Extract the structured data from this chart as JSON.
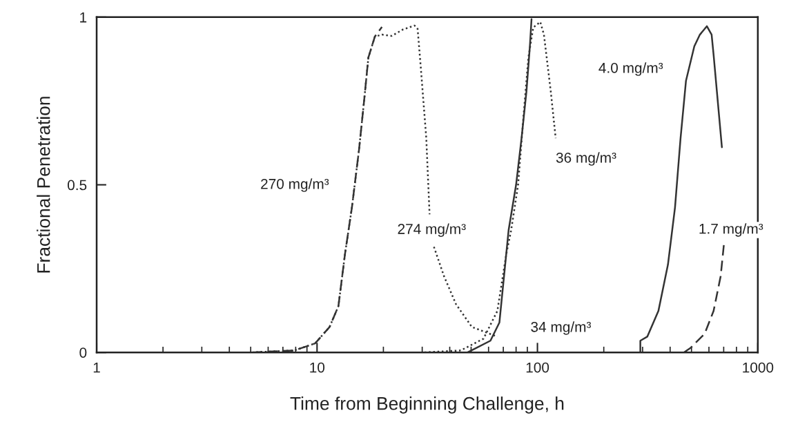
{
  "chart_data": {
    "type": "line",
    "xlabel": "Time from Beginning Challenge, h",
    "ylabel": "Fractional Penetration",
    "log": "x",
    "xlim": [
      1,
      1000
    ],
    "xticks": [
      1,
      10,
      100,
      1000
    ],
    "ylim": [
      0,
      1
    ],
    "yticks": [
      0,
      0.5,
      1
    ],
    "grid": false,
    "legend": false,
    "marker": "none",
    "series": [
      {
        "name": "270 mg/m³",
        "color": "#333333",
        "line_style": "dashed",
        "x": [
          1,
          5,
          7.9,
          9.8,
          11.4,
          12.5,
          13.4,
          14.4,
          15.5,
          16.3,
          17.1,
          18.3,
          19.7
        ],
        "values": [
          0,
          0,
          0.006,
          0.027,
          0.076,
          0.138,
          0.295,
          0.433,
          0.604,
          0.742,
          0.88,
          0.942,
          0.971
        ]
      },
      {
        "name": "274 mg/m³",
        "color": "#333333",
        "line_style": "dotted",
        "x": [
          1,
          5,
          7.9,
          9.8,
          11.4,
          12.5,
          13.4,
          14.4,
          15.5,
          16.3,
          17.1,
          18.3,
          19.7,
          21.8,
          24.5,
          27.7,
          28.6,
          29.6,
          31.3,
          32.4,
          33.1,
          33.9,
          37.7,
          42.7,
          50.4,
          65.8
        ],
        "values": [
          0,
          0,
          0.006,
          0.027,
          0.076,
          0.138,
          0.295,
          0.433,
          0.604,
          0.742,
          0.88,
          0.942,
          0.948,
          0.944,
          0.963,
          0.975,
          0.965,
          0.845,
          0.64,
          0.412,
          null,
          0.315,
          0.227,
          0.144,
          0.076,
          0.047
        ]
      },
      {
        "name": "36 mg/m³",
        "color": "#333333",
        "line_style": "dotted",
        "x": [
          1,
          30,
          44.9,
          56.9,
          65.8,
          72.3,
          76,
          81.7,
          86.5,
          91,
          95.7,
          103,
          107,
          115,
          121
        ],
        "values": [
          0,
          0,
          0.006,
          0.041,
          0.124,
          0.295,
          0.365,
          0.5,
          0.707,
          0.88,
          0.969,
          0.986,
          0.948,
          0.777,
          0.639
        ]
      },
      {
        "name": "34 mg/m³",
        "color": "#333333",
        "line_style": "solid",
        "x": [
          48.2,
          61.2,
          67.2,
          74,
          80,
          84.7,
          89.1,
          92.4,
          94
        ],
        "values": [
          0,
          0.035,
          0.089,
          0.365,
          0.5,
          0.639,
          0.777,
          0.913,
          0.994
        ]
      },
      {
        "name": "4.0 mg/m³",
        "color": "#333333",
        "line_style": "solid",
        "x": [
          293,
          293,
          315,
          354,
          391,
          421,
          446,
          472,
          515,
          546,
          587,
          617,
          630,
          687
        ],
        "values": [
          0,
          0.035,
          0.047,
          0.124,
          0.262,
          0.433,
          0.639,
          0.81,
          0.913,
          0.948,
          0.973,
          0.948,
          0.887,
          0.612
        ]
      },
      {
        "name": "1.7 mg/m³",
        "color": "#333333",
        "line_style": "dashed",
        "x": [
          462,
          496,
          574,
          630,
          678,
          702
        ],
        "values": [
          0,
          0.014,
          0.056,
          0.124,
          0.227,
          0.324
        ]
      }
    ]
  }
}
